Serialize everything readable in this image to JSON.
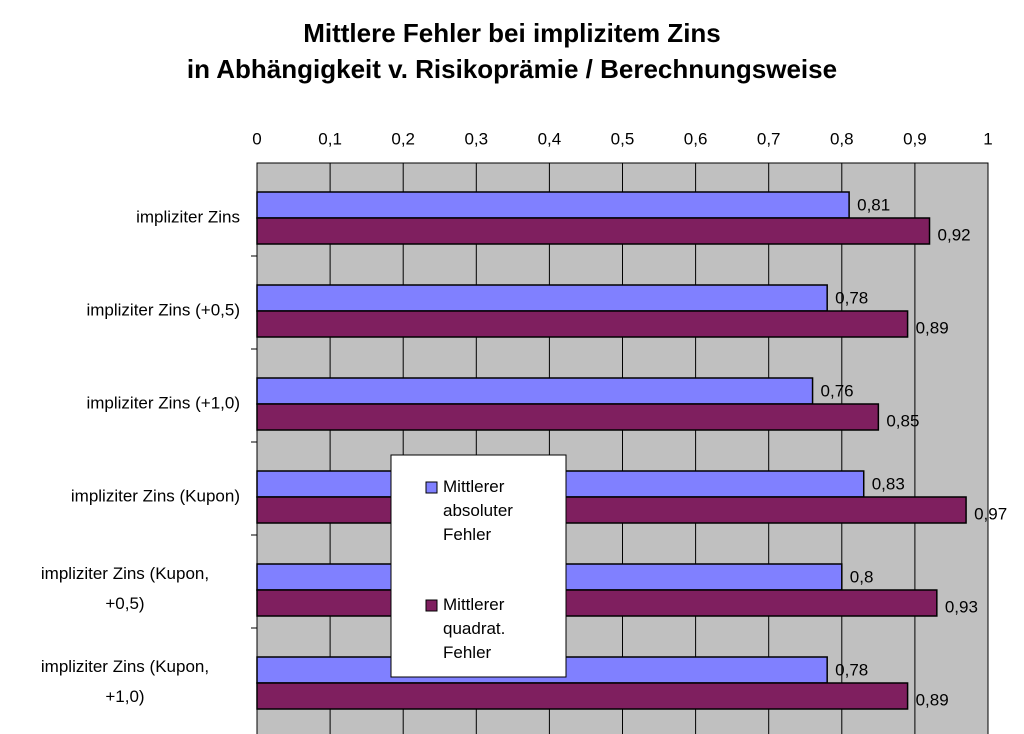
{
  "chart_data": {
    "type": "bar",
    "orientation": "horizontal",
    "title": "Mittlere Fehler bei implizitem Zins",
    "subtitle": "in Abhängigkeit v. Risikoprämie / Berechnungsweise",
    "categories": [
      "impliziter Zins",
      "impliziter Zins (+0,5)",
      "impliziter Zins (+1,0)",
      "impliziter Zins (Kupon)",
      "impliziter Zins (Kupon, +0,5)",
      "impliziter Zins (Kupon, +1,0)"
    ],
    "series": [
      {
        "name": "Mittlerer absoluter Fehler",
        "color": "#8080ff",
        "values": [
          0.81,
          0.78,
          0.76,
          0.83,
          0.8,
          0.78
        ],
        "value_labels": [
          "0,81",
          "0,78",
          "0,76",
          "0,83",
          "0,8",
          "0,78"
        ]
      },
      {
        "name": "Mittlerer quadrat. Fehler",
        "color": "#7f1f5f",
        "values": [
          0.92,
          0.89,
          0.85,
          0.97,
          0.93,
          0.89
        ],
        "value_labels": [
          "0,92",
          "0,89",
          "0,85",
          "0,97",
          "0,93",
          "0,89"
        ]
      }
    ],
    "xlim": [
      0,
      1
    ],
    "xticks": [
      0,
      {
        "value": 0.1,
        "label": "0,1"
      },
      {
        "value": 0.2,
        "label": "0,2"
      },
      {
        "value": 0.3,
        "label": "0,3"
      },
      {
        "value": 0.4,
        "label": "0,4"
      },
      {
        "value": 0.5,
        "label": "0,5"
      },
      {
        "value": 0.6,
        "label": "0,6"
      },
      {
        "value": 0.7,
        "label": "0,7"
      },
      {
        "value": 0.8,
        "label": "0,8"
      },
      {
        "value": 0.9,
        "label": "0,9"
      },
      1
    ],
    "grid": true
  }
}
